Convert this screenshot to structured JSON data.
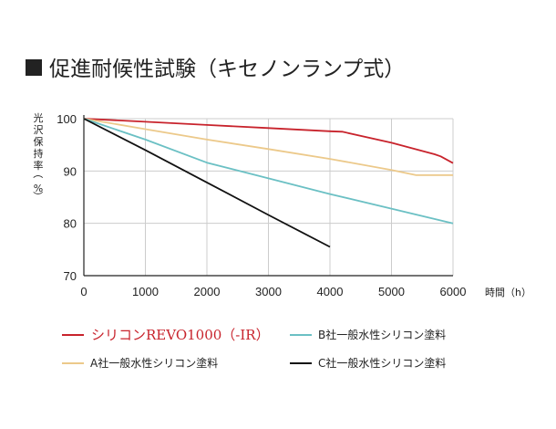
{
  "title": "促進耐候性試験（キセノンランプ式）",
  "colors": {
    "revo": "#c8232c",
    "a_company": "#ecc98a",
    "b_company": "#6bc0c4",
    "c_company": "#111111",
    "grid": "#cccccc",
    "title_square": "#222222"
  },
  "chart_data": {
    "type": "line",
    "title": "促進耐候性試験（キセノンランプ式）",
    "xlabel": "時間（h）",
    "ylabel": "光沢保持率（%）",
    "xlim": [
      0,
      6000
    ],
    "ylim": [
      70,
      100
    ],
    "xticks": [
      "0",
      "1000",
      "2000",
      "3000",
      "4000",
      "5000",
      "6000"
    ],
    "yticks": [
      "70",
      "80",
      "90",
      "100"
    ],
    "grid": true,
    "legend_position": "bottom",
    "series": [
      {
        "name": "シリコンREVO1000（-IR）",
        "color": "#c8232c",
        "x": [
          0,
          1000,
          2000,
          3000,
          4000,
          4200,
          5000,
          5700,
          5800,
          6000
        ],
        "y": [
          100,
          99.4,
          98.8,
          98.2,
          97.6,
          97.5,
          95.4,
          93.2,
          92.8,
          91.5
        ]
      },
      {
        "name": "A社一般水性シリコン塗料",
        "color": "#ecc98a",
        "x": [
          0,
          1000,
          2000,
          3000,
          4000,
          5000,
          5400,
          6000
        ],
        "y": [
          100,
          98.0,
          96.0,
          94.2,
          92.3,
          90.2,
          89.2,
          89.2
        ]
      },
      {
        "name": "B社一般水性シリコン塗料",
        "color": "#6bc0c4",
        "x": [
          0,
          1000,
          2000,
          3000,
          4000,
          5000,
          6000
        ],
        "y": [
          100,
          96.0,
          91.6,
          88.6,
          85.6,
          82.8,
          80.0
        ]
      },
      {
        "name": "C社一般水性シリコン塗料",
        "color": "#111111",
        "x": [
          0,
          1000,
          2000,
          3000,
          4000
        ],
        "y": [
          100,
          94.0,
          87.8,
          81.6,
          75.5
        ]
      }
    ]
  },
  "legend": {
    "revo": "シリコンREVO1000（-IR）",
    "a": "A社一般水性シリコン塗料",
    "b": "B社一般水性シリコン塗料",
    "c": "C社一般水性シリコン塗料"
  }
}
